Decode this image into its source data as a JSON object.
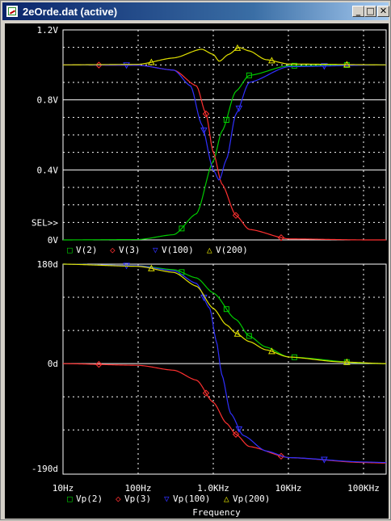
{
  "window": {
    "title": "2eOrde.dat (active)",
    "icons": {
      "app": "probe-icon",
      "minimize": "minimize-icon",
      "maximize": "maximize-icon",
      "close": "close-icon"
    },
    "buttons": {
      "minimize": "_",
      "maximize": "□",
      "close": "✕"
    }
  },
  "colors": {
    "background": "#000000",
    "grid": "#ffffff",
    "text": "#ffffff",
    "v2": "#00cc00",
    "v3": "#ff3030",
    "v100": "#3030ff",
    "v200": "#e0e000"
  },
  "chart_data": [
    {
      "type": "line",
      "title": "",
      "xlabel": "",
      "ylabel": "",
      "xscale": "log",
      "xlim": [
        10,
        200000
      ],
      "ylim": [
        0,
        1.2
      ],
      "y_tick_labels": [
        "1.2V",
        "0.8V",
        "0.4V",
        "0V"
      ],
      "selection_marker": "SEL>>",
      "grid": true,
      "legend_position": "bottom",
      "series": [
        {
          "name": "V(2)",
          "marker": "□",
          "x": [
            10,
            100,
            300,
            600,
            1000,
            1300,
            2000,
            3000,
            10000,
            100000,
            200000
          ],
          "y": [
            0,
            0.002,
            0.03,
            0.15,
            0.45,
            0.62,
            0.85,
            0.94,
            0.995,
            1.0,
            1.0
          ]
        },
        {
          "name": "V(3)",
          "marker": "◇",
          "x": [
            10,
            100,
            300,
            600,
            800,
            1000,
            1300,
            2000,
            3000,
            10000,
            100000,
            200000
          ],
          "y": [
            1.0,
            0.998,
            0.97,
            0.88,
            0.72,
            0.5,
            0.32,
            0.14,
            0.06,
            0.006,
            0.0001,
            0
          ]
        },
        {
          "name": "V(100)",
          "marker": "▽",
          "x": [
            10,
            100,
            300,
            500,
            700,
            1000,
            1200,
            1500,
            2000,
            3000,
            10000,
            200000
          ],
          "y": [
            1.0,
            0.998,
            0.97,
            0.88,
            0.66,
            0.4,
            0.34,
            0.46,
            0.72,
            0.9,
            0.99,
            1.0
          ]
        },
        {
          "name": "V(200)",
          "marker": "△",
          "x": [
            10,
            100,
            300,
            700,
            1000,
            1200,
            1600,
            2200,
            3000,
            5000,
            10000,
            200000
          ],
          "y": [
            1.0,
            1.003,
            1.04,
            1.09,
            1.06,
            1.02,
            1.06,
            1.1,
            1.08,
            1.03,
            1.005,
            1.0
          ]
        }
      ]
    },
    {
      "type": "line",
      "title": "",
      "xlabel": "Frequency",
      "ylabel": "",
      "xscale": "log",
      "xlim": [
        10,
        200000
      ],
      "ylim": [
        -200,
        180
      ],
      "x_tick_labels": [
        "10Hz",
        "100Hz",
        "1.0KHz",
        "10KHz",
        "100KHz"
      ],
      "y_tick_labels": [
        "180d",
        "0d",
        "-190d"
      ],
      "grid": true,
      "legend_position": "bottom",
      "series": [
        {
          "name": "Vp(2)",
          "marker": "□",
          "x": [
            10,
            100,
            300,
            600,
            1000,
            2000,
            3000,
            5000,
            10000,
            100000,
            200000
          ],
          "y": [
            180,
            177,
            170,
            155,
            128,
            80,
            50,
            30,
            12,
            1,
            0
          ]
        },
        {
          "name": "Vp(3)",
          "marker": "◇",
          "x": [
            10,
            100,
            300,
            600,
            1000,
            1500,
            2000,
            3000,
            10000,
            100000,
            200000
          ],
          "y": [
            0,
            -3,
            -12,
            -30,
            -70,
            -108,
            -128,
            -150,
            -170,
            -179,
            -180
          ]
        },
        {
          "name": "Vp(100)",
          "marker": "▽",
          "x": [
            10,
            100,
            300,
            600,
            900,
            1100,
            1300,
            1700,
            2500,
            5000,
            10000,
            100000,
            200000
          ],
          "y": [
            180,
            177,
            168,
            145,
            100,
            40,
            -20,
            -90,
            -130,
            -158,
            -170,
            -178,
            -179
          ]
        },
        {
          "name": "Vp(200)",
          "marker": "△",
          "x": [
            10,
            100,
            300,
            600,
            1000,
            1500,
            2000,
            3000,
            5000,
            10000,
            50000,
            200000
          ],
          "y": [
            180,
            176,
            165,
            140,
            100,
            70,
            55,
            40,
            25,
            12,
            3,
            0
          ]
        }
      ]
    }
  ]
}
